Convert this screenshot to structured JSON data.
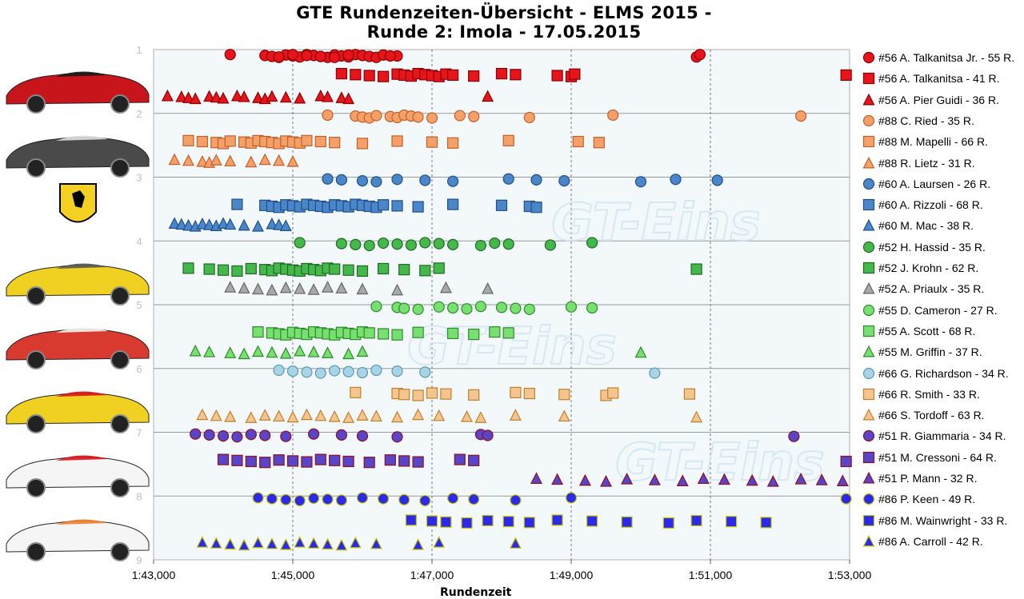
{
  "chart_data": {
    "type": "scatter",
    "title": "GTE Rundenzeiten-Übersicht - ELMS 2015 -",
    "subtitle": "Runde 2: Imola - 17.05.2015",
    "xlabel": "Rundenzeit",
    "ylabel": "",
    "xlim": [
      103.0,
      113.0
    ],
    "ylim": [
      1,
      9
    ],
    "x_ticks": [
      "1:43,000",
      "1:45,000",
      "1:47,000",
      "1:49,000",
      "1:51,000",
      "1:53,000"
    ],
    "y_ticks": [
      "1",
      "2",
      "3",
      "4",
      "5",
      "6",
      "7",
      "8",
      "9"
    ],
    "grid": true,
    "legend_position": "right",
    "watermark": "GT-Eins",
    "series": [
      {
        "name": "#56 A. Talkanitsa Jr. - 55 R.",
        "marker": "circle",
        "color": "#e8141b",
        "stroke": "#8b0000",
        "y": 1.1,
        "x": [
          104.1,
          104.6,
          104.7,
          104.8,
          104.9,
          105.0,
          105.1,
          105.2,
          105.3,
          105.4,
          105.5,
          105.6,
          105.7,
          105.8,
          105.9,
          106.0,
          106.1,
          106.2,
          106.3,
          106.5,
          104.8,
          105.0,
          105.2,
          105.4,
          105.6,
          105.8,
          106.4,
          110.8,
          110.85
        ]
      },
      {
        "name": "#56 A. Talkanitsa - 41 R.",
        "marker": "square",
        "color": "#e8141b",
        "stroke": "#8b0000",
        "y": 1.4,
        "x": [
          105.7,
          105.9,
          106.1,
          106.3,
          106.5,
          106.6,
          106.7,
          106.8,
          106.9,
          107.0,
          107.1,
          107.2,
          107.3,
          107.6,
          108.0,
          108.2,
          108.8,
          109.0,
          109.05,
          112.95
        ]
      },
      {
        "name": "#56 A. Pier Guidi - 36 R.",
        "marker": "triangle",
        "color": "#e8141b",
        "stroke": "#8b0000",
        "y": 1.75,
        "x": [
          103.2,
          103.4,
          103.5,
          103.6,
          103.8,
          103.9,
          104.0,
          104.2,
          104.3,
          104.5,
          104.6,
          104.7,
          104.9,
          105.1,
          105.4,
          105.5,
          105.7,
          105.8,
          107.8
        ]
      },
      {
        "name": "#88 C. Ried - 35 R.",
        "marker": "circle",
        "color": "#f5a068",
        "stroke": "#c0602a",
        "y": 2.05,
        "x": [
          105.5,
          105.9,
          106.0,
          106.1,
          106.2,
          106.4,
          106.5,
          106.6,
          106.7,
          106.8,
          107.0,
          107.4,
          107.6,
          108.4,
          109.6,
          112.3
        ]
      },
      {
        "name": "#88 M. Mapelli - 66 R.",
        "marker": "square",
        "color": "#f5a068",
        "stroke": "#c0602a",
        "y": 2.45,
        "x": [
          103.5,
          103.7,
          103.9,
          104.0,
          104.1,
          104.3,
          104.4,
          104.5,
          104.6,
          104.7,
          104.8,
          104.9,
          105.0,
          105.1,
          105.2,
          105.4,
          105.6,
          106.0,
          106.5,
          107.0,
          107.3,
          108.1,
          109.1,
          109.4
        ]
      },
      {
        "name": "#88 R. Lietz - 31 R.",
        "marker": "triangle",
        "color": "#f5a068",
        "stroke": "#c0602a",
        "y": 2.75,
        "x": [
          103.3,
          103.5,
          103.7,
          103.8,
          103.9,
          104.1,
          104.4,
          104.6,
          104.8,
          105.0
        ]
      },
      {
        "name": "#60 A. Laursen - 26 R.",
        "marker": "circle",
        "color": "#4a86c8",
        "stroke": "#1f4f8a",
        "y": 3.05,
        "x": [
          105.5,
          105.7,
          106.0,
          106.2,
          106.5,
          106.9,
          107.3,
          108.1,
          108.5,
          108.9,
          110.0,
          110.5,
          111.1
        ]
      },
      {
        "name": "#60 A. Rizzoli - 68 R.",
        "marker": "square",
        "color": "#4a86c8",
        "stroke": "#1f4f8a",
        "y": 3.45,
        "x": [
          104.2,
          104.6,
          104.7,
          104.8,
          104.9,
          105.0,
          105.1,
          105.2,
          105.3,
          105.4,
          105.5,
          105.6,
          105.7,
          105.8,
          105.9,
          106.0,
          106.1,
          106.2,
          106.3,
          106.5,
          106.8,
          107.3,
          108.0,
          108.4,
          108.5
        ]
      },
      {
        "name": "#60 M. Mac - 38 R.",
        "marker": "triangle",
        "color": "#4a86c8",
        "stroke": "#1f4f8a",
        "y": 3.75,
        "x": [
          103.3,
          103.4,
          103.5,
          103.6,
          103.7,
          103.8,
          103.9,
          104.0,
          104.1,
          104.3,
          104.5,
          104.7,
          104.8,
          104.9
        ]
      },
      {
        "name": "#52 H. Hassid - 35 R.",
        "marker": "circle",
        "color": "#44b84a",
        "stroke": "#1f6a22",
        "y": 4.05,
        "x": [
          105.1,
          105.7,
          105.9,
          106.1,
          106.3,
          106.5,
          106.7,
          106.9,
          107.1,
          107.3,
          107.7,
          107.9,
          108.1,
          108.7,
          109.3
        ]
      },
      {
        "name": "#52 J. Krohn - 62 R.",
        "marker": "square",
        "color": "#44b84a",
        "stroke": "#1f6a22",
        "y": 4.45,
        "x": [
          103.5,
          103.8,
          104.0,
          104.2,
          104.4,
          104.6,
          104.7,
          104.8,
          104.9,
          105.0,
          105.1,
          105.2,
          105.3,
          105.4,
          105.5,
          105.6,
          105.8,
          106.0,
          106.3,
          106.6,
          106.9,
          107.1,
          110.8
        ]
      },
      {
        "name": "#52 A. Priaulx - 35 R.",
        "marker": "triangle",
        "color": "#a8a8a8",
        "stroke": "#666666",
        "y": 4.75,
        "x": [
          104.1,
          104.3,
          104.5,
          104.7,
          104.9,
          105.1,
          105.3,
          105.5,
          105.7,
          106.0,
          106.5,
          107.2,
          107.8
        ]
      },
      {
        "name": "#55 D. Cameron - 27 R.",
        "marker": "circle",
        "color": "#78e070",
        "stroke": "#2e8a2a",
        "y": 5.05,
        "x": [
          106.2,
          106.5,
          106.6,
          106.8,
          107.1,
          107.3,
          107.5,
          107.7,
          108.0,
          108.2,
          108.4,
          109.0,
          109.3
        ]
      },
      {
        "name": "#55 A. Scott - 68 R.",
        "marker": "square",
        "color": "#78e070",
        "stroke": "#2e8a2a",
        "y": 5.45,
        "x": [
          104.5,
          104.7,
          104.8,
          104.9,
          105.0,
          105.1,
          105.2,
          105.3,
          105.4,
          105.5,
          105.6,
          105.7,
          105.8,
          105.9,
          106.0,
          106.1,
          106.3,
          106.5,
          106.8,
          107.3,
          107.6,
          107.9,
          108.1
        ]
      },
      {
        "name": "#55 M. Griffin - 37 R.",
        "marker": "triangle",
        "color": "#78e070",
        "stroke": "#2e8a2a",
        "y": 5.75,
        "x": [
          103.6,
          103.8,
          104.1,
          104.3,
          104.5,
          104.7,
          104.9,
          105.1,
          105.3,
          105.5,
          105.8,
          106.0,
          110.0
        ]
      },
      {
        "name": "#66 G. Richardson - 34 R.",
        "marker": "circle",
        "color": "#a8d4e6",
        "stroke": "#5a9ab5",
        "y": 6.05,
        "x": [
          104.8,
          105.0,
          105.2,
          105.4,
          105.6,
          105.8,
          106.0,
          106.2,
          106.5,
          106.9,
          110.2
        ]
      },
      {
        "name": "#66 R. Smith - 33 R.",
        "marker": "square",
        "color": "#f5c590",
        "stroke": "#c0802a",
        "y": 6.4,
        "x": [
          105.9,
          106.5,
          106.6,
          106.8,
          107.0,
          107.2,
          107.6,
          108.2,
          108.4,
          108.9,
          109.5,
          109.6,
          110.7
        ]
      },
      {
        "name": "#66 S. Tordoff - 63 R.",
        "marker": "triangle",
        "color": "#f5c590",
        "stroke": "#c0802a",
        "y": 6.75,
        "x": [
          103.7,
          103.9,
          104.1,
          104.4,
          104.6,
          104.8,
          105.0,
          105.2,
          105.4,
          105.6,
          105.8,
          106.0,
          106.2,
          106.5,
          106.8,
          107.1,
          107.5,
          107.7,
          108.2,
          108.9,
          110.8
        ]
      },
      {
        "name": "#51 R. Giammaria - 34 R.",
        "marker": "circle",
        "color": "#5a44c8",
        "stroke": "#8b1020",
        "y": 7.05,
        "x": [
          103.6,
          103.8,
          104.0,
          104.2,
          104.4,
          104.6,
          104.9,
          105.3,
          105.7,
          106.0,
          106.5,
          107.7,
          107.8,
          112.2
        ]
      },
      {
        "name": "#51 M. Cressoni - 64 R.",
        "marker": "square",
        "color": "#5a44c8",
        "stroke": "#8b1020",
        "y": 7.45,
        "x": [
          104.0,
          104.2,
          104.4,
          104.6,
          104.8,
          105.0,
          105.2,
          105.4,
          105.6,
          105.8,
          106.1,
          106.4,
          106.6,
          106.8,
          107.4,
          107.6,
          112.95
        ]
      },
      {
        "name": "#51 P. Mann - 32 R.",
        "marker": "triangle",
        "color": "#5a44c8",
        "stroke": "#8b1020",
        "y": 7.75,
        "x": [
          108.5,
          108.8,
          109.2,
          109.5,
          109.8,
          110.2,
          110.6,
          110.9,
          111.2,
          111.6,
          111.9,
          112.3,
          112.6,
          112.9
        ]
      },
      {
        "name": "#86 P. Keen - 49 R.",
        "marker": "circle",
        "color": "#2a2ae8",
        "stroke": "#c8c800",
        "y": 8.05,
        "x": [
          104.5,
          104.7,
          104.9,
          105.1,
          105.3,
          105.5,
          105.7,
          106.0,
          106.3,
          106.6,
          106.9,
          107.3,
          107.6,
          108.2,
          109.0,
          112.95
        ]
      },
      {
        "name": "#86 M. Wainwright - 33 R.",
        "marker": "square",
        "color": "#2a2ae8",
        "stroke": "#c8c800",
        "y": 8.4,
        "x": [
          106.7,
          107.0,
          107.2,
          107.5,
          107.8,
          108.1,
          108.4,
          108.8,
          109.3,
          109.8,
          110.4,
          110.8,
          111.3,
          111.8
        ]
      },
      {
        "name": "#86 A. Carroll - 42 R.",
        "marker": "triangle",
        "color": "#2a2ae8",
        "stroke": "#c8c800",
        "y": 8.75,
        "x": [
          103.7,
          103.9,
          104.1,
          104.3,
          104.5,
          104.7,
          104.9,
          105.1,
          105.3,
          105.5,
          105.7,
          105.9,
          106.2,
          106.8,
          107.1,
          108.2
        ]
      }
    ]
  }
}
